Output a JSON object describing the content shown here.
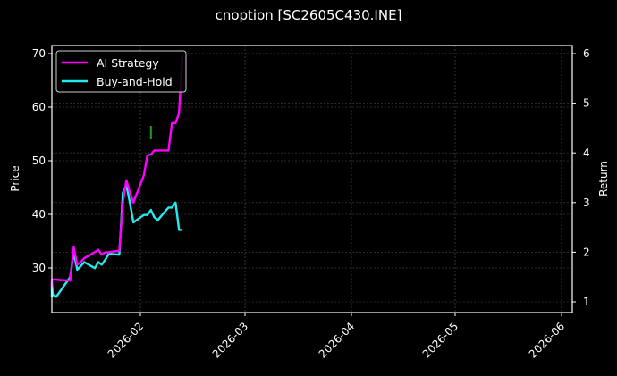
{
  "chart_data": {
    "type": "line",
    "title": "cnoption [SC2605C430.INE]",
    "xlabel": "",
    "ylabel": "Price",
    "ylabel_right": "Return",
    "ylim": [
      21.5,
      71
    ],
    "ylim_right": [
      0.8,
      6.1
    ],
    "yticks": [
      30,
      40,
      50,
      60,
      70
    ],
    "yticks_right": [
      1,
      2,
      3,
      4,
      5,
      6
    ],
    "xticks": [
      "2026-02",
      "2026-03",
      "2026-04",
      "2026-05",
      "2026-06"
    ],
    "grid": true,
    "legend_position": "upper left",
    "series": [
      {
        "name": "AI Strategy",
        "color": "#ff00ff",
        "axis": "right",
        "x": [
          "2026-01-05",
          "2026-01-06",
          "2026-01-07",
          "2026-01-08",
          "2026-01-09",
          "2026-01-12",
          "2026-01-13",
          "2026-01-14",
          "2026-01-15",
          "2026-01-16",
          "2026-01-19",
          "2026-01-20",
          "2026-01-21",
          "2026-01-22",
          "2026-01-23",
          "2026-01-26",
          "2026-01-27",
          "2026-01-28",
          "2026-01-29",
          "2026-01-30",
          "2026-02-02",
          "2026-02-03",
          "2026-02-04",
          "2026-02-05",
          "2026-02-06",
          "2026-02-09",
          "2026-02-10",
          "2026-02-11",
          "2026-02-12",
          "2026-02-13"
        ],
        "values": [
          1.3,
          1.45,
          1.45,
          1.45,
          1.44,
          1.43,
          2.1,
          1.75,
          1.8,
          1.88,
          2.0,
          2.05,
          1.95,
          2.0,
          2.0,
          2.03,
          3.0,
          3.45,
          3.2,
          3.0,
          3.55,
          3.95,
          3.97,
          4.05,
          4.05,
          4.05,
          4.6,
          4.6,
          4.8,
          6.0
        ]
      },
      {
        "name": "Buy-and-Hold",
        "color": "#22ecef",
        "axis": "right",
        "x": [
          "2026-01-05",
          "2026-01-06",
          "2026-01-07",
          "2026-01-08",
          "2026-01-09",
          "2026-01-12",
          "2026-01-13",
          "2026-01-14",
          "2026-01-15",
          "2026-01-16",
          "2026-01-19",
          "2026-01-20",
          "2026-01-21",
          "2026-01-22",
          "2026-01-23",
          "2026-01-26",
          "2026-01-27",
          "2026-01-28",
          "2026-01-29",
          "2026-01-30",
          "2026-02-02",
          "2026-02-03",
          "2026-02-04",
          "2026-02-05",
          "2026-02-06",
          "2026-02-09",
          "2026-02-10",
          "2026-02-11",
          "2026-02-12",
          "2026-02-13"
        ],
        "values": [
          1.1,
          1.4,
          1.15,
          1.1,
          1.2,
          1.5,
          2.0,
          1.65,
          1.72,
          1.8,
          1.68,
          1.8,
          1.75,
          1.85,
          1.97,
          1.95,
          3.2,
          3.35,
          3.0,
          2.6,
          2.75,
          2.75,
          2.85,
          2.7,
          2.65,
          2.9,
          2.9,
          3.0,
          2.45,
          2.45
        ]
      }
    ],
    "scatter_markers": [
      {
        "x": "2026-02-04",
        "price_low": 54,
        "price_high": 56.5,
        "color": "#1fa01f"
      }
    ]
  },
  "legend": {
    "items": [
      {
        "label": "AI Strategy",
        "color": "#ff00ff"
      },
      {
        "label": "Buy-and-Hold",
        "color": "#22ecef"
      }
    ]
  }
}
